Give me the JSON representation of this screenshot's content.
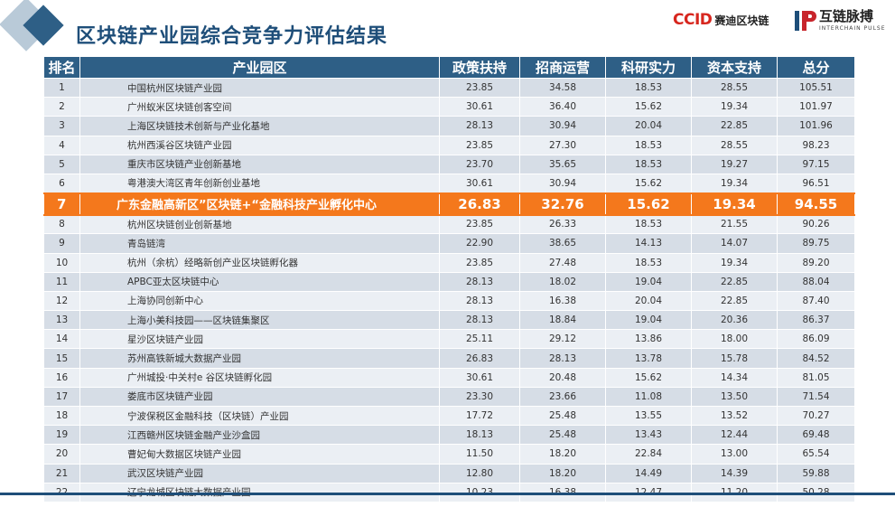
{
  "title": "区块链产业园综合竞争力评估结果",
  "logos": {
    "ccid_mark": "CCID",
    "ccid_text": "赛迪区块链",
    "interchain_cn": "互链脉搏",
    "interchain_en": "INTERCHAIN PULSE"
  },
  "table": {
    "headers": [
      "排名",
      "产业园区",
      "政策扶持",
      "招商运营",
      "科研实力",
      "资本支持",
      "总分"
    ],
    "highlight_rank": "7",
    "rows": [
      {
        "rank": "1",
        "park": "中国杭州区块链产业园",
        "policy": "23.85",
        "investment": "34.58",
        "research": "18.53",
        "capital": "28.55",
        "total": "105.51"
      },
      {
        "rank": "2",
        "park": "广州蚁米区块链创客空间",
        "policy": "30.61",
        "investment": "36.40",
        "research": "15.62",
        "capital": "19.34",
        "total": "101.97"
      },
      {
        "rank": "3",
        "park": "上海区块链技术创新与产业化基地",
        "policy": "28.13",
        "investment": "30.94",
        "research": "20.04",
        "capital": "22.85",
        "total": "101.96"
      },
      {
        "rank": "4",
        "park": "杭州西溪谷区块链产业园",
        "policy": "23.85",
        "investment": "27.30",
        "research": "18.53",
        "capital": "28.55",
        "total": "98.23"
      },
      {
        "rank": "5",
        "park": "重庆市区块链产业创新基地",
        "policy": "23.70",
        "investment": "35.65",
        "research": "18.53",
        "capital": "19.27",
        "total": "97.15"
      },
      {
        "rank": "6",
        "park": "粤港澳大湾区青年创新创业基地",
        "policy": "30.61",
        "investment": "30.94",
        "research": "15.62",
        "capital": "19.34",
        "total": "96.51"
      },
      {
        "rank": "7",
        "park": "广东金融高新区”区块链+“金融科技产业孵化中心",
        "policy": "26.83",
        "investment": "32.76",
        "research": "15.62",
        "capital": "19.34",
        "total": "94.55"
      },
      {
        "rank": "8",
        "park": "杭州区块链创业创新基地",
        "policy": "23.85",
        "investment": "26.33",
        "research": "18.53",
        "capital": "21.55",
        "total": "90.26"
      },
      {
        "rank": "9",
        "park": "青岛链湾",
        "policy": "22.90",
        "investment": "38.65",
        "research": "14.13",
        "capital": "14.07",
        "total": "89.75"
      },
      {
        "rank": "10",
        "park": "杭州（余杭）经略新创产业区块链孵化器",
        "policy": "23.85",
        "investment": "27.48",
        "research": "18.53",
        "capital": "19.34",
        "total": "89.20"
      },
      {
        "rank": "11",
        "park": "APBC亚太区块链中心",
        "policy": "28.13",
        "investment": "18.02",
        "research": "19.04",
        "capital": "22.85",
        "total": "88.04"
      },
      {
        "rank": "12",
        "park": "上海协同创新中心",
        "policy": "28.13",
        "investment": "16.38",
        "research": "20.04",
        "capital": "22.85",
        "total": "87.40"
      },
      {
        "rank": "13",
        "park": "上海小美科技园——区块链集聚区",
        "policy": "28.13",
        "investment": "18.84",
        "research": "19.04",
        "capital": "20.36",
        "total": "86.37"
      },
      {
        "rank": "14",
        "park": "星沙区块链产业园",
        "policy": "25.11",
        "investment": "29.12",
        "research": "13.86",
        "capital": "18.00",
        "total": "86.09"
      },
      {
        "rank": "15",
        "park": "苏州高铁新城大数据产业园",
        "policy": "26.83",
        "investment": "28.13",
        "research": "13.78",
        "capital": "15.78",
        "total": "84.52"
      },
      {
        "rank": "16",
        "park": "广州城投·中关村e 谷区块链孵化园",
        "policy": "30.61",
        "investment": "20.48",
        "research": "15.62",
        "capital": "14.34",
        "total": "81.05"
      },
      {
        "rank": "17",
        "park": "娄底市区块链产业园",
        "policy": "23.30",
        "investment": "23.66",
        "research": "11.08",
        "capital": "13.50",
        "total": "71.54"
      },
      {
        "rank": "18",
        "park": "宁波保税区金融科技（区块链）产业园",
        "policy": "17.72",
        "investment": "25.48",
        "research": "13.55",
        "capital": "13.52",
        "total": "70.27"
      },
      {
        "rank": "19",
        "park": "江西赣州区块链金融产业沙盒园",
        "policy": "18.13",
        "investment": "25.48",
        "research": "13.43",
        "capital": "12.44",
        "total": "69.48"
      },
      {
        "rank": "20",
        "park": "曹妃甸大数据区块链产业园",
        "policy": "11.50",
        "investment": "18.20",
        "research": "22.84",
        "capital": "13.00",
        "total": "65.54"
      },
      {
        "rank": "21",
        "park": "武汉区块链产业园",
        "policy": "12.80",
        "investment": "18.20",
        "research": "14.49",
        "capital": "14.39",
        "total": "59.88"
      },
      {
        "rank": "22",
        "park": "辽宁龙城区块链大数据产业园",
        "policy": "10.23",
        "investment": "16.38",
        "research": "12.47",
        "capital": "11.20",
        "total": "50.28"
      }
    ]
  }
}
